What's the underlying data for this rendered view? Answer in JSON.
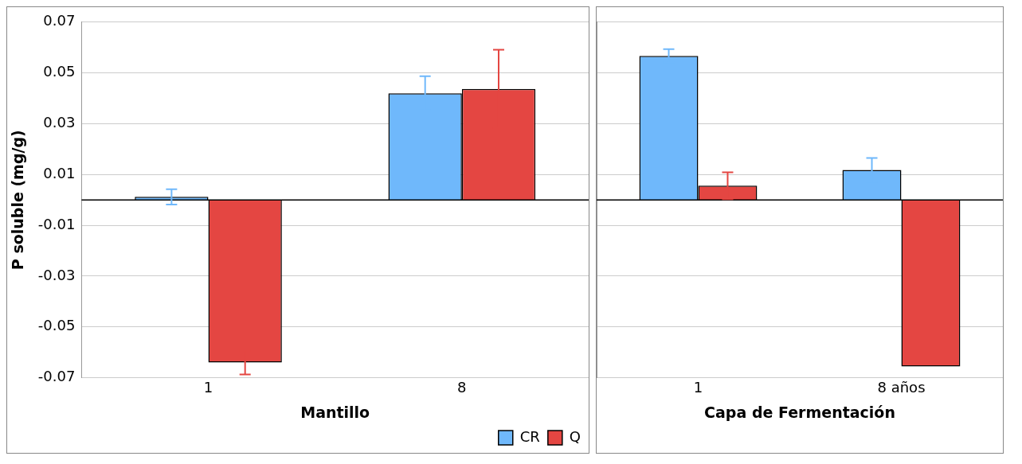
{
  "chart_data": [
    {
      "type": "bar",
      "xlabel": "Mantillo",
      "ylabel": "P soluble (mg/g)",
      "categories": [
        "1",
        "8"
      ],
      "series": [
        {
          "name": "CR",
          "color": "#6fb8fb",
          "values": [
            0.0012,
            0.042
          ],
          "errors": [
            0.003,
            0.0067
          ]
        },
        {
          "name": "Q",
          "color": "#e44642",
          "values": [
            -0.064,
            0.0437
          ],
          "errors": [
            0.0047,
            0.0154
          ]
        }
      ],
      "ylim": [
        -0.07,
        0.07
      ],
      "yticks": [
        -0.07,
        -0.05,
        -0.03,
        -0.01,
        0.01,
        0.03,
        0.05,
        0.07
      ],
      "grid": "y",
      "legend": "bottom"
    },
    {
      "type": "bar",
      "xlabel": "Capa de Fermentación",
      "categories": [
        "1",
        "8 años"
      ],
      "series": [
        {
          "color": "#6fb8fb",
          "values": [
            0.0567,
            0.0118
          ],
          "errors": [
            0.0027,
            0.0047
          ]
        },
        {
          "color": "#e44642",
          "values": [
            0.0056,
            -0.0656
          ],
          "errors": [
            0.0053,
            null
          ]
        }
      ],
      "ylim": [
        -0.07,
        0.07
      ],
      "yticks": [
        -0.07,
        -0.05,
        -0.03,
        -0.01,
        0.01,
        0.03,
        0.05,
        0.07
      ],
      "grid": "y",
      "tick_labels": "x"
    }
  ]
}
